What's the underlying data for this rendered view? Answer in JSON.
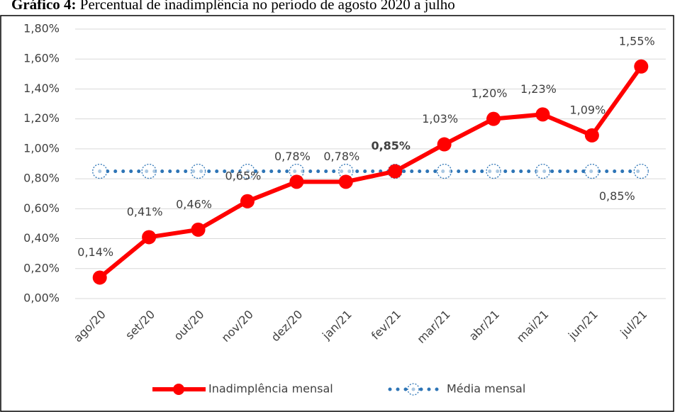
{
  "chart_data": {
    "type": "line",
    "title_label": "Gráfico 4:",
    "title": "Percentual de inadimplência no período de agosto 2020 a julho",
    "categories": [
      "ago/20",
      "set/20",
      "out/20",
      "nov/20",
      "dez/20",
      "jan/21",
      "fev/21",
      "mar/21",
      "abr/21",
      "mai/21",
      "jun/21",
      "jul/21"
    ],
    "series": [
      {
        "name": "Inadimplência mensal",
        "color": "#ff0000",
        "values": [
          0.14,
          0.41,
          0.46,
          0.65,
          0.78,
          0.78,
          0.85,
          1.03,
          1.2,
          1.23,
          1.09,
          1.55
        ],
        "value_labels": [
          "0,14%",
          "0,41%",
          "0,46%",
          "0,65%",
          "0,78%",
          "0,78%",
          "0,85%",
          "1,03%",
          "1,20%",
          "1,23%",
          "1,09%",
          "1,55%"
        ]
      },
      {
        "name": "Média mensal",
        "color": "#2e75b6",
        "values": [
          0.85,
          0.85,
          0.85,
          0.85,
          0.85,
          0.85,
          0.85,
          0.85,
          0.85,
          0.85,
          0.85,
          0.85
        ],
        "value_labels": [
          null,
          null,
          null,
          null,
          null,
          null,
          null,
          null,
          null,
          null,
          null,
          "0,85%"
        ]
      }
    ],
    "ylim": [
      0,
      1.8
    ],
    "yticks": [
      {
        "value": 0,
        "label": "0,00%"
      },
      {
        "value": 0.2,
        "label": "0,20%"
      },
      {
        "value": 0.4,
        "label": "0,40%"
      },
      {
        "value": 0.6,
        "label": "0,60%"
      },
      {
        "value": 0.8,
        "label": "0,80%"
      },
      {
        "value": 1.0,
        "label": "1,00%"
      },
      {
        "value": 1.2,
        "label": "1,20%"
      },
      {
        "value": 1.4,
        "label": "1,40%"
      },
      {
        "value": 1.6,
        "label": "1,60%"
      },
      {
        "value": 1.8,
        "label": "1,80%"
      }
    ],
    "grid": true,
    "legend": "bottom"
  }
}
